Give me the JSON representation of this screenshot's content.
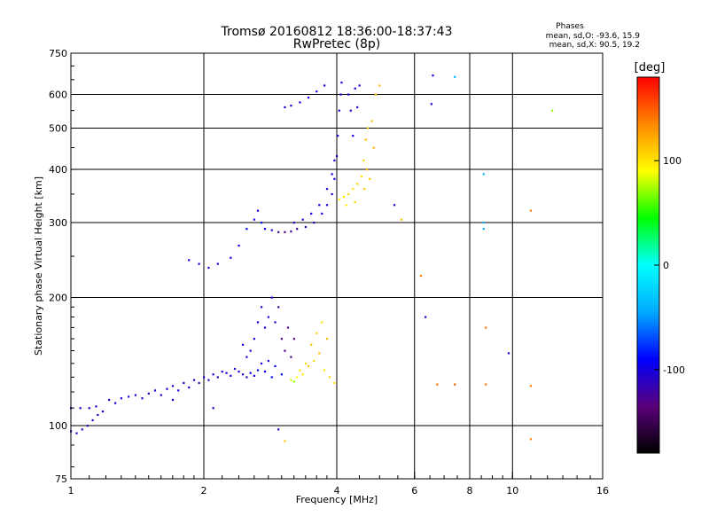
{
  "header": {
    "title_line1": "Tromsø 20160812 18:36:00-18:37:43",
    "title_line2": "RwPretec (8p)",
    "phase_heading": "Phases",
    "phase_o": "mean, sd,O:  -93.6, 15.9",
    "phase_x": "mean, sd,X:   90.5, 19.2"
  },
  "chart_data": {
    "type": "scatter",
    "xlabel": "Frequency [MHz]",
    "ylabel": "Stationary phase Virtual Height [km]",
    "x_scale": "log2",
    "y_scale": "log",
    "xlim": [
      1,
      16
    ],
    "ylim": [
      75,
      750
    ],
    "x_ticks": [
      {
        "value": 1,
        "label": "1"
      },
      {
        "value": 2,
        "label": "2"
      },
      {
        "value": 4,
        "label": "4"
      },
      {
        "value": 6,
        "label": "6"
      },
      {
        "value": 8,
        "label": "8"
      },
      {
        "value": 10,
        "label": "10"
      },
      {
        "value": 16,
        "label": "16"
      }
    ],
    "x_gridlines": [
      2,
      4,
      6,
      8,
      10
    ],
    "y_ticks": [
      {
        "value": 75,
        "label": "75"
      },
      {
        "value": 100,
        "label": "100"
      },
      {
        "value": 200,
        "label": "200"
      },
      {
        "value": 300,
        "label": "300"
      },
      {
        "value": 400,
        "label": "400"
      },
      {
        "value": 500,
        "label": "500"
      },
      {
        "value": 600,
        "label": "600"
      },
      {
        "value": 750,
        "label": "750"
      }
    ],
    "y_gridlines": [
      100,
      200,
      300,
      400,
      500,
      600
    ],
    "colorbar": {
      "label": "[deg]",
      "range": [
        -180,
        180
      ],
      "ticks": [
        {
          "value": 100,
          "label": "100"
        },
        {
          "value": 0,
          "label": "0"
        },
        {
          "value": -100,
          "label": "-100"
        }
      ],
      "colors": [
        "#000000",
        "#5a007a",
        "#0000ff",
        "#00aaff",
        "#00ffff",
        "#00ff00",
        "#ffff00",
        "#ff8800",
        "#ff0000"
      ]
    },
    "points": [
      [
        1.0,
        97,
        -110
      ],
      [
        1.03,
        96,
        -112
      ],
      [
        1.06,
        98,
        -108
      ],
      [
        1.09,
        100,
        -110
      ],
      [
        1.12,
        103,
        -105
      ],
      [
        1.15,
        106,
        -108
      ],
      [
        1.0,
        110,
        -108
      ],
      [
        1.05,
        110,
        -110
      ],
      [
        1.1,
        110,
        -106
      ],
      [
        1.14,
        111,
        -108
      ],
      [
        1.18,
        108,
        -104
      ],
      [
        1.22,
        115,
        -106
      ],
      [
        1.26,
        113,
        -108
      ],
      [
        1.3,
        116,
        -102
      ],
      [
        1.35,
        117,
        -108
      ],
      [
        1.4,
        118,
        -105
      ],
      [
        1.45,
        116,
        -110
      ],
      [
        1.5,
        119,
        -104
      ],
      [
        1.55,
        121,
        -108
      ],
      [
        1.6,
        118,
        -102
      ],
      [
        1.65,
        122,
        -106
      ],
      [
        1.7,
        124,
        -110
      ],
      [
        1.75,
        121,
        -104
      ],
      [
        1.8,
        126,
        -108
      ],
      [
        1.85,
        123,
        -100
      ],
      [
        1.9,
        128,
        -106
      ],
      [
        1.95,
        126,
        -112
      ],
      [
        2.0,
        130,
        -104
      ],
      [
        2.05,
        128,
        -108
      ],
      [
        2.1,
        132,
        -98
      ],
      [
        2.15,
        130,
        -110
      ],
      [
        2.2,
        134,
        -104
      ],
      [
        2.25,
        133,
        -106
      ],
      [
        2.3,
        131,
        -100
      ],
      [
        2.35,
        136,
        -108
      ],
      [
        2.4,
        134,
        -95
      ],
      [
        2.45,
        132,
        -104
      ],
      [
        2.5,
        130,
        -110
      ],
      [
        2.55,
        133,
        -92
      ],
      [
        2.6,
        131,
        -100
      ],
      [
        2.65,
        135,
        -88
      ],
      [
        2.7,
        140,
        -96
      ],
      [
        2.75,
        134,
        -90
      ],
      [
        2.8,
        142,
        -100
      ],
      [
        2.85,
        130,
        -86
      ],
      [
        2.9,
        138,
        -92
      ],
      [
        3.0,
        132,
        -88
      ],
      [
        2.6,
        160,
        -104
      ],
      [
        2.65,
        175,
        -100
      ],
      [
        2.7,
        190,
        -106
      ],
      [
        2.75,
        170,
        -98
      ],
      [
        2.8,
        180,
        -102
      ],
      [
        2.85,
        200,
        -100
      ],
      [
        2.9,
        175,
        -108
      ],
      [
        2.95,
        190,
        -120
      ],
      [
        3.0,
        160,
        -130
      ],
      [
        3.05,
        150,
        -126
      ],
      [
        3.1,
        170,
        -132
      ],
      [
        3.15,
        145,
        -128
      ],
      [
        3.2,
        160,
        -134
      ],
      [
        2.55,
        150,
        -110
      ],
      [
        2.5,
        145,
        -100
      ],
      [
        2.45,
        155,
        -96
      ],
      [
        3.15,
        128,
        80
      ],
      [
        3.25,
        130,
        90
      ],
      [
        3.35,
        132,
        100
      ],
      [
        3.45,
        138,
        110
      ],
      [
        3.55,
        142,
        104
      ],
      [
        3.65,
        148,
        112
      ],
      [
        3.75,
        135,
        96
      ],
      [
        3.85,
        130,
        108
      ],
      [
        3.95,
        126,
        100
      ],
      [
        3.2,
        127,
        70
      ],
      [
        3.3,
        135,
        98
      ],
      [
        3.4,
        140,
        106
      ],
      [
        3.5,
        155,
        112
      ],
      [
        3.6,
        165,
        108
      ],
      [
        3.7,
        175,
        100
      ],
      [
        3.8,
        160,
        114
      ],
      [
        1.85,
        245,
        -100
      ],
      [
        1.95,
        240,
        -96
      ],
      [
        2.05,
        235,
        -104
      ],
      [
        2.15,
        240,
        -98
      ],
      [
        2.3,
        248,
        -100
      ],
      [
        2.4,
        265,
        -96
      ],
      [
        2.5,
        290,
        -92
      ],
      [
        2.6,
        305,
        -100
      ],
      [
        2.65,
        320,
        -96
      ],
      [
        2.7,
        300,
        -88
      ],
      [
        2.75,
        290,
        -94
      ],
      [
        2.85,
        288,
        -110
      ],
      [
        2.95,
        285,
        -120
      ],
      [
        3.05,
        285,
        -126
      ],
      [
        3.15,
        286,
        -122
      ],
      [
        3.25,
        290,
        -118
      ],
      [
        3.4,
        293,
        -114
      ],
      [
        3.55,
        300,
        -110
      ],
      [
        3.7,
        315,
        -106
      ],
      [
        3.8,
        330,
        -104
      ],
      [
        3.9,
        350,
        -102
      ],
      [
        3.95,
        380,
        -100
      ],
      [
        4.0,
        430,
        -104
      ],
      [
        4.02,
        480,
        -106
      ],
      [
        4.05,
        550,
        -104
      ],
      [
        4.08,
        600,
        -100
      ],
      [
        4.1,
        640,
        -102
      ],
      [
        3.2,
        300,
        -104
      ],
      [
        3.35,
        305,
        -100
      ],
      [
        3.5,
        315,
        -96
      ],
      [
        3.65,
        330,
        -98
      ],
      [
        3.8,
        360,
        -102
      ],
      [
        3.9,
        390,
        -100
      ],
      [
        3.95,
        420,
        -104
      ],
      [
        3.05,
        560,
        -104
      ],
      [
        3.15,
        565,
        -100
      ],
      [
        3.3,
        575,
        -102
      ],
      [
        3.45,
        590,
        -98
      ],
      [
        3.6,
        610,
        -100
      ],
      [
        3.75,
        630,
        -102
      ],
      [
        4.25,
        600,
        -100
      ],
      [
        4.3,
        550,
        -104
      ],
      [
        4.35,
        480,
        -102
      ],
      [
        4.4,
        620,
        -100
      ],
      [
        4.45,
        560,
        -104
      ],
      [
        4.5,
        630,
        -102
      ],
      [
        4.05,
        340,
        95
      ],
      [
        4.15,
        345,
        100
      ],
      [
        4.25,
        350,
        105
      ],
      [
        4.35,
        360,
        100
      ],
      [
        4.45,
        370,
        108
      ],
      [
        4.55,
        385,
        102
      ],
      [
        4.6,
        420,
        110
      ],
      [
        4.65,
        470,
        115
      ],
      [
        4.7,
        500,
        108
      ],
      [
        4.2,
        330,
        98
      ],
      [
        4.4,
        335,
        104
      ],
      [
        4.62,
        360,
        110
      ],
      [
        4.68,
        400,
        118
      ],
      [
        4.75,
        380,
        112
      ],
      [
        4.8,
        520,
        116
      ],
      [
        4.9,
        600,
        112
      ],
      [
        5.0,
        630,
        118
      ],
      [
        4.85,
        450,
        120
      ],
      [
        5.4,
        330,
        -108
      ],
      [
        5.6,
        305,
        112
      ],
      [
        6.2,
        225,
        140
      ],
      [
        6.35,
        180,
        -104
      ],
      [
        6.55,
        570,
        -104
      ],
      [
        6.6,
        665,
        -100
      ],
      [
        6.75,
        125,
        140
      ],
      [
        7.4,
        660,
        -40
      ],
      [
        7.4,
        125,
        150
      ],
      [
        8.6,
        390,
        -40
      ],
      [
        8.6,
        300,
        -40
      ],
      [
        8.6,
        290,
        -40
      ],
      [
        8.7,
        170,
        140
      ],
      [
        8.7,
        125,
        140
      ],
      [
        9.8,
        148,
        -104
      ],
      [
        11.0,
        320,
        140
      ],
      [
        11.0,
        124,
        140
      ],
      [
        11.0,
        93,
        140
      ],
      [
        12.3,
        550,
        70
      ],
      [
        3.05,
        92,
        110
      ],
      [
        2.95,
        98,
        -104
      ],
      [
        1.7,
        115,
        -110
      ],
      [
        2.1,
        110,
        -110
      ]
    ]
  }
}
